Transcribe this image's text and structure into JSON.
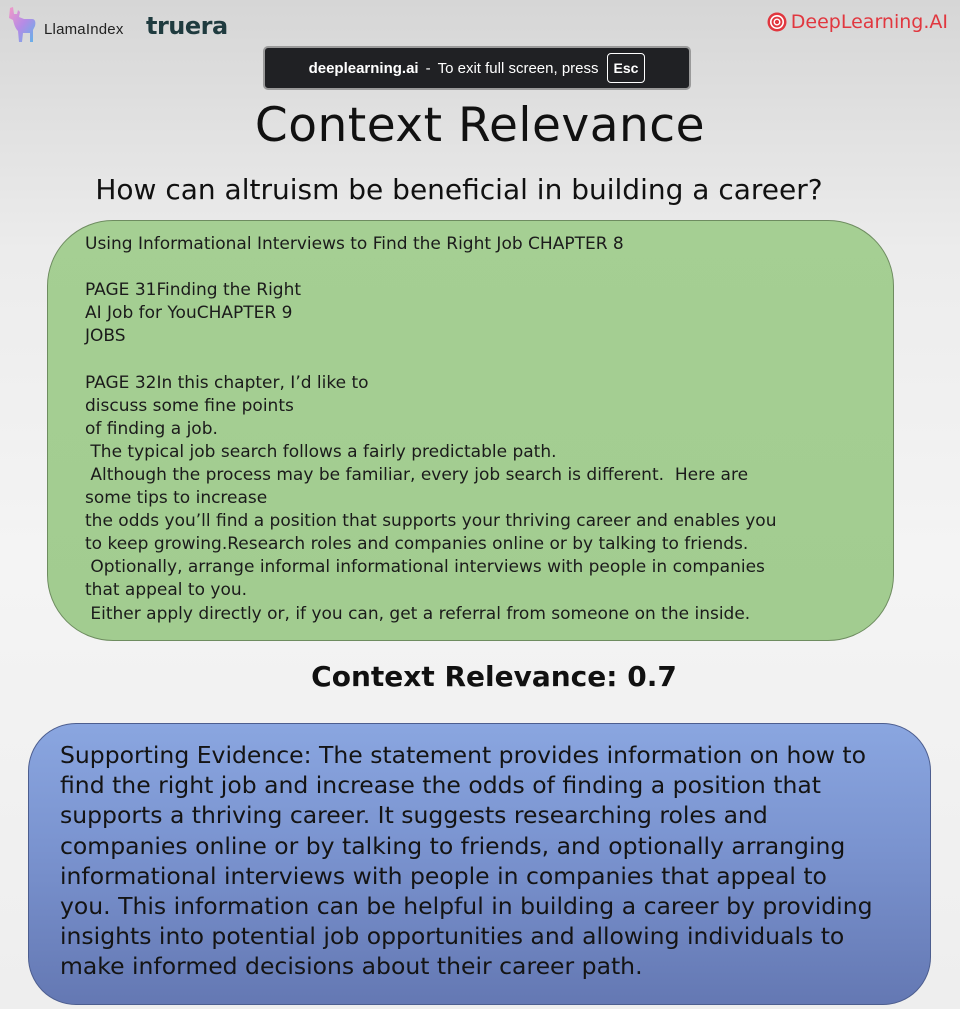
{
  "header": {
    "llamaindex_label": "LlamaIndex",
    "truera_label": "truera",
    "deeplearning_label": "DeepLearning.AI"
  },
  "fullscreen_banner": {
    "site": "deeplearning.ai",
    "separator": "-",
    "message": "To exit full screen, press",
    "key": "Esc"
  },
  "slide": {
    "title": "Context Relevance",
    "question": "How can altruism be beneficial in building a career?",
    "context_lines": [
      "Using Informational Interviews to Find the Right Job CHAPTER 8",
      "",
      "PAGE 31Finding the Right",
      "AI Job for YouCHAPTER 9",
      "JOBS",
      "",
      "PAGE 32In this chapter, I’d like to",
      "discuss some fine points",
      "of finding a job.",
      " The typical job search follows a fairly predictable path.",
      " Although the process may be familiar, every job search is different.  Here are",
      "some tips to increase",
      "the odds you’ll find a position that supports your thriving career and enables you",
      "to keep growing.Research roles and companies online or by talking to friends.",
      " Optionally, arrange informal informational interviews with people in companies",
      "that appeal to you.",
      " Either apply directly or, if you can, get a referral from someone on the inside."
    ],
    "score_text": "Context Relevance: 0.7",
    "evidence_lines": [
      "Supporting Evidence: The statement provides information on how to",
      "find the right job and increase the odds of finding a position that",
      "supports a thriving career. It suggests researching roles and",
      "companies online or by talking to friends, and optionally arranging",
      "informational interviews with people in companies that appeal to",
      "you. This information can be helpful in building a career by providing",
      "insights into potential job opportunities and allowing individuals to",
      "make informed decisions about their career path."
    ]
  },
  "colors": {
    "context_box": "#a5cf93",
    "evidence_box": "#7a93cf",
    "deeplearning_red": "#e1373f",
    "truera_dark": "#1f3b3f"
  }
}
